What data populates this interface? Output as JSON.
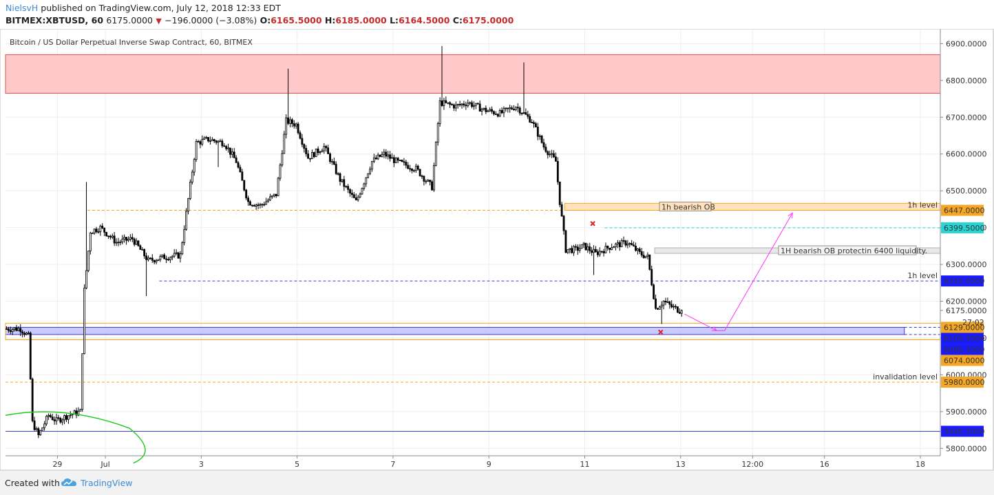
{
  "header": {
    "author": "NielsvH",
    "published": "published on TradingView.com, July 12, 2018 12:33 EDT",
    "symbol": "BITMEX:XBTUSD, 60",
    "last": "6175.0000",
    "change": "−196.0000 (−3.08%)",
    "o_label": "O:",
    "o_val": "6165.5000",
    "h_label": "H:",
    "h_val": "6185.0000",
    "l_label": "L:",
    "l_val": "6164.5000",
    "c_label": "C:",
    "c_val": "6175.0000"
  },
  "footer": {
    "created_with": "Created with",
    "brand": "TradingView"
  },
  "chart_data": {
    "type": "candlestick",
    "title": "Bitcoin / US Dollar Perpetual Inverse Swap Contract, 60, BITMEX",
    "timeframe": "60",
    "ylim": [
      5780,
      6940
    ],
    "y_ticks": [
      5800,
      5900,
      6000,
      6100,
      6200,
      6300,
      6400,
      6500,
      6600,
      6700,
      6800,
      6900
    ],
    "y_tick_labels": [
      "5800.0000",
      "5900.0000",
      "6000.0000",
      "6100.0000",
      "6200.0000",
      "6300.0000",
      "6400.0000",
      "6500.0000",
      "6600.0000",
      "6700.0000",
      "6800.0000",
      "6900.0000"
    ],
    "x_ticks": [
      {
        "label": "29",
        "t": 26
      },
      {
        "label": "Jul",
        "t": 50
      },
      {
        "label": "3",
        "t": 98
      },
      {
        "label": "5",
        "t": 146
      },
      {
        "label": "7",
        "t": 194
      },
      {
        "label": "9",
        "t": 242
      },
      {
        "label": "11",
        "t": 290
      },
      {
        "label": "13",
        "t": 338
      },
      {
        "label": "12:00",
        "t": 374
      },
      {
        "label": "16",
        "t": 410
      },
      {
        "label": "18",
        "t": 458
      }
    ],
    "time_unit": "hours since start of 28 Jun (one candle per hour)",
    "time_domain": [
      0,
      468
    ],
    "grid": true,
    "last_price": 6175,
    "countdown": "27:02",
    "price_path": [
      [
        0,
        6125
      ],
      [
        8,
        6125
      ],
      [
        12,
        6105
      ],
      [
        14,
        5870
      ],
      [
        17,
        5835
      ],
      [
        22,
        5890
      ],
      [
        26,
        5875
      ],
      [
        32,
        5890
      ],
      [
        38,
        5900
      ],
      [
        40,
        6230
      ],
      [
        43,
        6390
      ],
      [
        48,
        6400
      ],
      [
        56,
        6360
      ],
      [
        64,
        6370
      ],
      [
        72,
        6310
      ],
      [
        80,
        6320
      ],
      [
        88,
        6325
      ],
      [
        96,
        6630
      ],
      [
        102,
        6640
      ],
      [
        110,
        6630
      ],
      [
        116,
        6580
      ],
      [
        122,
        6470
      ],
      [
        128,
        6460
      ],
      [
        136,
        6490
      ],
      [
        141,
        6690
      ],
      [
        146,
        6680
      ],
      [
        152,
        6590
      ],
      [
        160,
        6620
      ],
      [
        168,
        6530
      ],
      [
        176,
        6470
      ],
      [
        184,
        6580
      ],
      [
        190,
        6600
      ],
      [
        196,
        6580
      ],
      [
        206,
        6560
      ],
      [
        214,
        6510
      ],
      [
        218,
        6740
      ],
      [
        226,
        6730
      ],
      [
        232,
        6740
      ],
      [
        240,
        6720
      ],
      [
        248,
        6710
      ],
      [
        256,
        6730
      ],
      [
        264,
        6690
      ],
      [
        270,
        6620
      ],
      [
        276,
        6580
      ],
      [
        278,
        6470
      ],
      [
        281,
        6340
      ],
      [
        286,
        6340
      ],
      [
        290,
        6350
      ],
      [
        296,
        6330
      ],
      [
        304,
        6350
      ],
      [
        312,
        6360
      ],
      [
        318,
        6330
      ],
      [
        322,
        6320
      ],
      [
        326,
        6180
      ],
      [
        330,
        6200
      ],
      [
        334,
        6185
      ],
      [
        338,
        6175
      ]
    ],
    "zones": [
      {
        "name": "supply-zone",
        "y_top": 6870,
        "y_bottom": 6765,
        "x_start": 0,
        "x_end": 468,
        "color": "#ffc9c9",
        "border": "#e05050"
      },
      {
        "label": "1h bearish OB",
        "y_top": 6466,
        "y_bottom": 6447,
        "x_start": 280,
        "x_end": 468,
        "color": "#ffe2bd",
        "border": "#f5a623"
      },
      {
        "label": "1H bearish OB protectin 6400 liquidity.",
        "y_top": 6345,
        "y_bottom": 6330,
        "x_start": 325,
        "x_end": 468,
        "color": "#e8e8e8",
        "border": "#b0b0b0"
      },
      {
        "name": "demand-zone",
        "y_top": 6129,
        "y_bottom": 6109.5,
        "x_start": 0,
        "x_end": 450,
        "color": "#c9cbff",
        "border": "#3b3bd6"
      },
      {
        "name": "demand-zone-outline",
        "y_top": 6140,
        "y_bottom": 6095.5,
        "x_start": 0,
        "x_end": 468,
        "color": "none",
        "border": "#f5a623"
      }
    ],
    "levels": [
      {
        "price": 6447,
        "label": "1h level",
        "price_label": "6447.0000",
        "style": "dashed",
        "color": "#f5a623",
        "x_start": 41
      },
      {
        "price": 6399.5,
        "price_label": "6399.5000",
        "style": "dashed",
        "color": "#26d4d4",
        "x_start": 300
      },
      {
        "price": 6255,
        "label": "1h level",
        "price_label": "6255.0000",
        "style": "dashed",
        "color": "#3b3bd6",
        "x_start": 77
      },
      {
        "price": 6129,
        "price_label": "6129.0000",
        "style": "dashed",
        "color": "#3b3bd6",
        "x_start": 450
      },
      {
        "price": 6109.5,
        "price_label": "6109.5000",
        "style": "dashed",
        "color": "#3b3bd6",
        "x_start": 450
      },
      {
        "price": 6095.5,
        "price_label": "6095.5000",
        "style": "solid",
        "color": "#f5a623",
        "x_start": 0
      },
      {
        "price": 6074,
        "price_label": "6074.0000",
        "style": "none",
        "color": "#f5a623",
        "x_start": 0
      },
      {
        "price": 5980,
        "label": "invalidation level",
        "price_label": "5980.0000",
        "style": "dashed",
        "color": "#f5a623",
        "x_start": 0
      },
      {
        "price": 5846.5,
        "price_label": "5846.5000",
        "style": "solid",
        "color": "#3b3bd6",
        "x_start": 0
      }
    ],
    "price_label_colors": {
      "6447.0000": "#f5a623",
      "6399.5000": "#26d4d4",
      "6255.0000": "#1a1aff",
      "6129.0000": "#f5a623",
      "6109.5000": "#1a1aff",
      "6095.5000": "#1a1aff",
      "6074.0000": "#f5a623",
      "5980.0000": "#f5a623",
      "5846.5000": "#1a1aff"
    },
    "annotations": [
      {
        "type": "arrow",
        "color": "#ff33ff",
        "points": [
          [
            340,
            6165
          ],
          [
            356,
            6120
          ],
          [
            360,
            6120
          ],
          [
            394,
            6440
          ]
        ]
      },
      {
        "type": "x-marker",
        "color": "#e02020",
        "t": 294,
        "y": 6411
      },
      {
        "type": "x-marker",
        "color": "#e02020",
        "t": 328,
        "y": 6116
      },
      {
        "type": "curve",
        "color": "#22cc22",
        "points": [
          [
            0,
            5890
          ],
          [
            30,
            5905
          ],
          [
            62,
            5855
          ],
          [
            72,
            5790
          ],
          [
            64,
            5760
          ]
        ]
      }
    ]
  }
}
